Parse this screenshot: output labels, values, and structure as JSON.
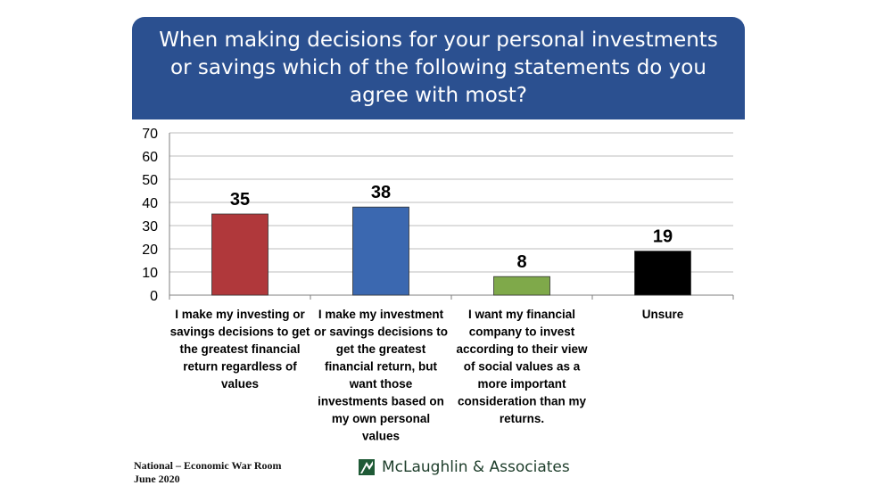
{
  "title": "When making decisions for your personal investments or savings which of the following statements do you agree with most?",
  "footer": {
    "line1": "National – Economic War Room",
    "line2": "June 2020"
  },
  "logo": {
    "icon": "mclaughlin-logo-icon",
    "text": "McLaughlin & Associates"
  },
  "colors": {
    "banner": "#2b5090",
    "grid": "#bdbdbd"
  },
  "chart_data": {
    "type": "bar",
    "categories": [
      "I make my investing or savings decisions to get the greatest financial return regardless of values",
      "I make my investment or savings decisions to get the greatest financial return, but want those investments based on my own personal values",
      "I want my financial company to invest according to their view of social values as a more important consideration than my returns.",
      "Unsure"
    ],
    "category_lines": [
      [
        "I make my investing or",
        "savings decisions to get",
        "the greatest financial",
        "return regardless of",
        "values"
      ],
      [
        "I make my investment",
        "or savings decisions to",
        "get the greatest",
        "financial return, but",
        "want those",
        "investments based on",
        "my own personal",
        "values"
      ],
      [
        "I want my financial",
        "company to invest",
        "according to their view",
        "of social values as a",
        "more important",
        "consideration than my",
        "returns."
      ],
      [
        "Unsure"
      ]
    ],
    "values": [
      35,
      38,
      8,
      19
    ],
    "data_labels": [
      "35",
      "38",
      "8",
      "19"
    ],
    "bar_colors": [
      "#b0383b",
      "#3b68b0",
      "#7fa94a",
      "#000000"
    ],
    "ylim": [
      0,
      70
    ],
    "yticks": [
      0,
      10,
      20,
      30,
      40,
      50,
      60,
      70
    ],
    "grid": true,
    "legend": "none"
  }
}
